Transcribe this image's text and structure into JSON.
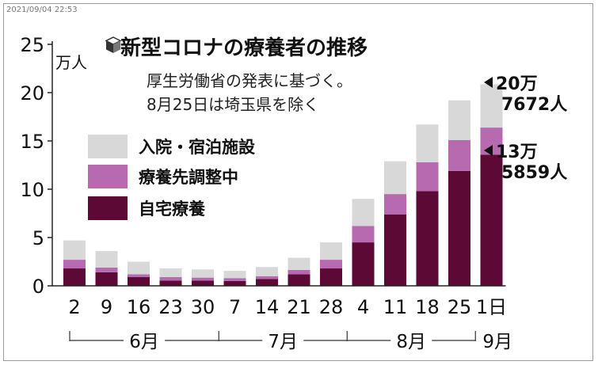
{
  "timestamp": "2021/09/04 22:53",
  "title": "新型コロナの療養者の推移",
  "subtitle_lines": [
    "厚生労働省の発表に基づく。",
    "8月25日は埼玉県を除く"
  ],
  "unit": "万人",
  "legend": [
    {
      "label": "入院・宿泊施設",
      "color": "#d8d8d8"
    },
    {
      "label": "療養先調整中",
      "color": "#b86ab0"
    },
    {
      "label": "自宅療養",
      "color": "#5c0a35"
    }
  ],
  "callouts": [
    {
      "line1": "20万",
      "line2": "7672人"
    },
    {
      "line1": "13万",
      "line2": "5859人"
    }
  ],
  "month_labels": [
    {
      "label": "6月"
    },
    {
      "label": "7月"
    },
    {
      "label": "8月"
    },
    {
      "label": "9月"
    }
  ],
  "chart_data": {
    "type": "bar",
    "stacked": true,
    "categories": [
      "2",
      "9",
      "16",
      "23",
      "30",
      "7",
      "14",
      "21",
      "28",
      "4",
      "11",
      "18",
      "25",
      "1日"
    ],
    "series": [
      {
        "name": "自宅療養",
        "values": [
          1.8,
          1.4,
          0.9,
          0.55,
          0.55,
          0.5,
          0.7,
          1.2,
          1.8,
          4.5,
          7.4,
          9.8,
          11.9,
          13.5859
        ]
      },
      {
        "name": "療養先調整中",
        "values": [
          0.9,
          0.5,
          0.3,
          0.35,
          0.3,
          0.3,
          0.3,
          0.45,
          0.9,
          1.7,
          2.1,
          3.0,
          3.2,
          2.8
        ]
      },
      {
        "name": "入院・宿泊施設",
        "values": [
          2.0,
          1.7,
          1.3,
          0.9,
          0.85,
          0.75,
          0.95,
          1.25,
          1.8,
          2.8,
          3.4,
          3.9,
          4.1,
          4.4813
        ]
      }
    ],
    "yticks": [
      0,
      5,
      10,
      15,
      20,
      25
    ],
    "ylim": [
      0,
      25
    ]
  }
}
